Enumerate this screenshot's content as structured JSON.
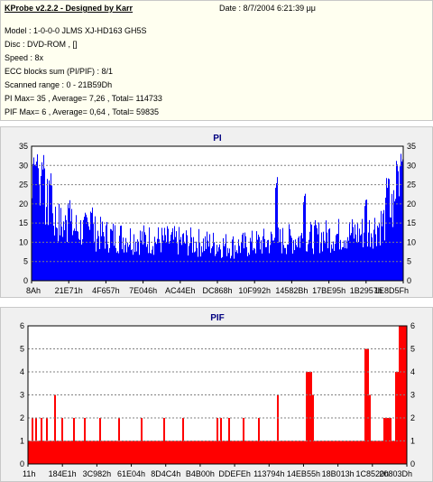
{
  "info": {
    "title": "KProbe v2.2.2 - Designed by Karr",
    "date": "Date : 8/7/2004 6:21:39 μμ",
    "lines": [
      "Model : 1-0-0-0 JLMS    XJ-HD163         GH5S",
      "Disc : DVD-ROM ,  []",
      "Speed : 8x",
      "ECC blocks sum (PI/PIF) : 8/1",
      "Scanned range : 0 - 21B59Dh",
      "PI Max= 35 , Average= 7,26 , Total= 114733",
      "PIF Max= 6 , Average= 0,64 , Total= 59835"
    ]
  },
  "chart_data": [
    {
      "type": "bar",
      "title": "PI",
      "color": "#0000ff",
      "ylim": [
        0,
        35
      ],
      "yticks": [
        0,
        5,
        10,
        15,
        20,
        25,
        30,
        35
      ],
      "xtick_labels": [
        "8Ah",
        "21E71h",
        "4F657h",
        "7E046h",
        "AC44Eh",
        "DC868h",
        "10F992h",
        "14582Bh",
        "17BE95h",
        "1B2957h",
        "1E8D5Fh"
      ],
      "profile": [
        [
          0,
          24
        ],
        [
          0.02,
          28
        ],
        [
          0.04,
          22
        ],
        [
          0.06,
          18
        ],
        [
          0.08,
          16
        ],
        [
          0.12,
          15
        ],
        [
          0.2,
          13
        ],
        [
          0.3,
          12
        ],
        [
          0.45,
          11
        ],
        [
          0.55,
          10
        ],
        [
          0.62,
          11
        ],
        [
          0.7,
          12
        ],
        [
          0.8,
          13
        ],
        [
          0.9,
          14
        ],
        [
          0.95,
          17
        ],
        [
          0.98,
          22
        ],
        [
          1.0,
          26
        ]
      ],
      "spikes": [
        [
          0.005,
          35
        ],
        [
          0.015,
          34
        ],
        [
          0.03,
          33
        ],
        [
          0.05,
          28
        ],
        [
          0.1,
          22
        ],
        [
          0.16,
          20
        ],
        [
          0.66,
          28
        ],
        [
          0.735,
          24
        ],
        [
          0.9,
          22
        ],
        [
          0.96,
          27
        ],
        [
          0.985,
          33
        ],
        [
          0.995,
          35
        ]
      ],
      "grid": true,
      "legend": "none"
    },
    {
      "type": "bar",
      "title": "PIF",
      "color": "#ff0000",
      "ylim": [
        0,
        6
      ],
      "yticks": [
        0,
        1,
        2,
        3,
        4,
        5,
        6
      ],
      "xtick_labels": [
        "11h",
        "184E1h",
        "3C982h",
        "61E04h",
        "8D4C4h",
        "B4B00h",
        "DDEFEh",
        "113794h",
        "14EB55h",
        "18B013h",
        "1C8520h",
        "20803Dh"
      ],
      "baseline": 1,
      "twos": [
        0.01,
        0.02,
        0.035,
        0.05,
        0.07,
        0.09,
        0.12,
        0.15,
        0.19,
        0.24,
        0.3,
        0.36,
        0.41,
        0.5,
        0.51,
        0.53,
        0.57,
        0.61
      ],
      "threes": [
        0.07,
        0.66
      ],
      "blocks": [
        [
          0.735,
          0.75,
          4
        ],
        [
          0.74,
          0.755,
          3
        ],
        [
          0.89,
          0.9,
          5
        ],
        [
          0.895,
          0.905,
          3
        ],
        [
          0.94,
          0.96,
          2
        ],
        [
          0.97,
          0.985,
          4
        ],
        [
          0.98,
          1.0,
          6
        ]
      ],
      "grid": true,
      "legend": "none"
    }
  ]
}
